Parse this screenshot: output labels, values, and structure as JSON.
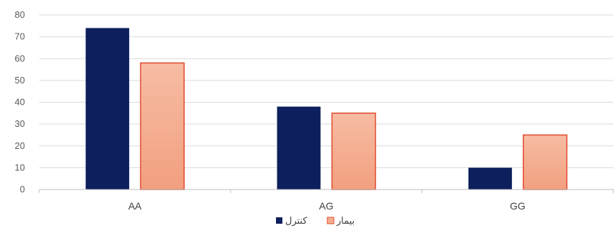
{
  "chart_data": {
    "type": "bar",
    "categories": [
      "AA",
      "AG",
      "GG"
    ],
    "series": [
      {
        "name": "کنترل",
        "values": [
          74,
          38,
          10
        ],
        "color": "#0d1f5c"
      },
      {
        "name": "بیمار",
        "values": [
          58,
          35,
          25
        ],
        "color": "#f4b08f",
        "edge_color": "#e0492c"
      }
    ],
    "ylim": [
      0,
      80
    ],
    "yticks": [
      0,
      10,
      20,
      30,
      40,
      50,
      60,
      70,
      80
    ],
    "ytick_labels": [
      "0",
      "10",
      "20",
      "30",
      "40",
      "50",
      "60",
      "70",
      "80"
    ],
    "grid": true,
    "legend_position": "bottom",
    "title": "",
    "xlabel": "",
    "ylabel": ""
  }
}
